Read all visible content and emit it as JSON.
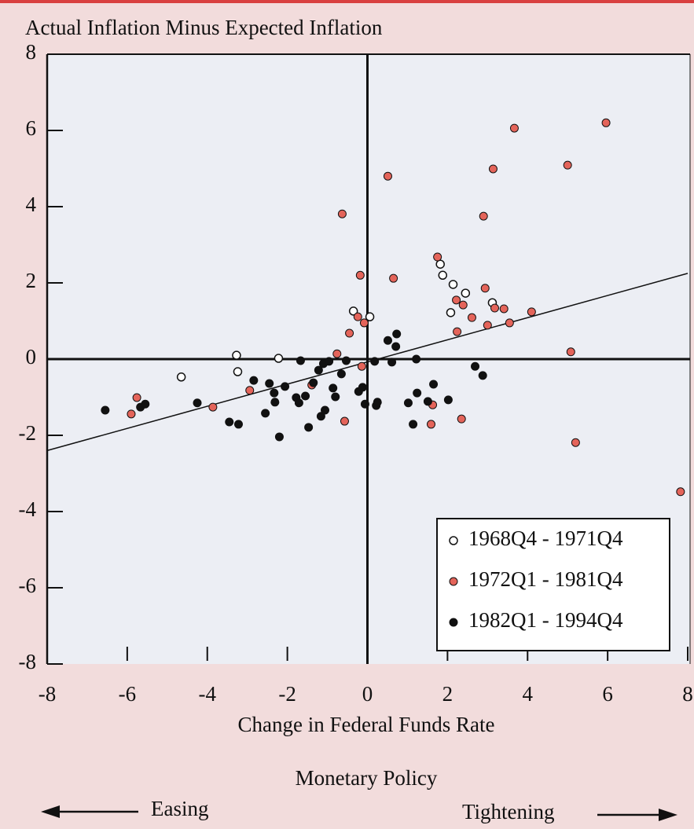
{
  "chart_data": {
    "type": "scatter",
    "title": "Actual Inflation Minus Expected Inflation",
    "x_label": "Change in Federal Funds Rate",
    "annotations": [
      "Monetary Policy",
      "Easing",
      "Tightening"
    ],
    "xlim": [
      -8,
      8
    ],
    "ylim": [
      -8,
      8
    ],
    "xticks": [
      -8,
      -6,
      -4,
      -2,
      0,
      2,
      4,
      6,
      8
    ],
    "yticks": [
      -8,
      -6,
      -4,
      -2,
      0,
      2,
      4,
      6,
      8
    ],
    "legend": "lower right",
    "trend_line": {
      "x": [
        -8,
        8
      ],
      "y": [
        -2.4,
        2.25
      ]
    },
    "series": [
      {
        "name": "1968Q4 - 1971Q4",
        "color": "#ffffff",
        "hollow": true,
        "x": [
          -4.65,
          -3.27,
          -3.24,
          -2.22,
          -0.35,
          1.82,
          1.88,
          2.14,
          2.45,
          3.12,
          2.08,
          0.06
        ],
        "values": [
          -0.47,
          0.1,
          -0.33,
          0.02,
          1.26,
          2.49,
          2.2,
          1.96,
          1.73,
          1.48,
          1.22,
          1.11
        ]
      },
      {
        "name": "1972Q1 - 1981Q4",
        "color": "#e4645a",
        "hollow": false,
        "x": [
          -0.63,
          0.51,
          3.67,
          3.14,
          5.0,
          5.96,
          2.9,
          -0.18,
          0.65,
          1.75,
          2.94,
          2.22,
          2.39,
          3.18,
          3.41,
          2.61,
          4.1,
          2.24,
          3.0,
          3.55,
          -0.24,
          -0.08,
          -0.45,
          -0.76,
          -0.14,
          5.08,
          5.2,
          7.82,
          2.35,
          1.59,
          1.63,
          -0.57,
          -1.39,
          -2.94,
          -3.86,
          -5.76,
          -5.9
        ],
        "values": [
          3.81,
          4.8,
          6.06,
          4.99,
          5.09,
          6.2,
          3.75,
          2.2,
          2.12,
          2.68,
          1.86,
          1.55,
          1.42,
          1.34,
          1.32,
          1.09,
          1.24,
          0.72,
          0.89,
          0.95,
          1.11,
          0.95,
          0.68,
          0.14,
          -0.19,
          0.19,
          -2.19,
          -3.48,
          -1.57,
          -1.71,
          -1.2,
          -1.63,
          -0.68,
          -0.82,
          -1.26,
          -1.01,
          -1.44
        ]
      },
      {
        "name": "1982Q1 - 1994Q4",
        "color": "#111111",
        "hollow": false,
        "x": [
          -6.55,
          -5.67,
          -5.55,
          -4.25,
          -3.45,
          -3.22,
          -2.84,
          -2.55,
          -2.45,
          -2.33,
          -2.31,
          -2.2,
          -2.06,
          -1.78,
          -1.71,
          -1.67,
          -1.55,
          -1.47,
          -1.35,
          -1.22,
          -1.16,
          -1.1,
          -1.06,
          -0.96,
          -0.86,
          -0.8,
          -0.65,
          -0.53,
          -0.22,
          -0.12,
          -0.06,
          0.22,
          0.25,
          0.51,
          0.73,
          0.71,
          0.61,
          1.22,
          1.02,
          1.14,
          1.24,
          1.51,
          1.65,
          2.02,
          2.69,
          2.88,
          0.18
        ],
        "values": [
          -1.34,
          -1.26,
          -1.18,
          -1.15,
          -1.65,
          -1.71,
          -0.56,
          -1.42,
          -0.64,
          -0.89,
          -1.13,
          -2.04,
          -0.72,
          -1.01,
          -1.15,
          -0.04,
          -0.97,
          -1.79,
          -0.62,
          -0.29,
          -1.5,
          -0.12,
          -1.34,
          -0.06,
          -0.76,
          -0.99,
          -0.39,
          -0.04,
          -0.85,
          -0.74,
          -1.18,
          -1.22,
          -1.13,
          0.49,
          0.66,
          0.33,
          -0.08,
          0,
          -1.15,
          -1.71,
          -0.89,
          -1.11,
          -0.66,
          -1.07,
          -0.19,
          -0.43,
          -0.06
        ]
      }
    ]
  }
}
